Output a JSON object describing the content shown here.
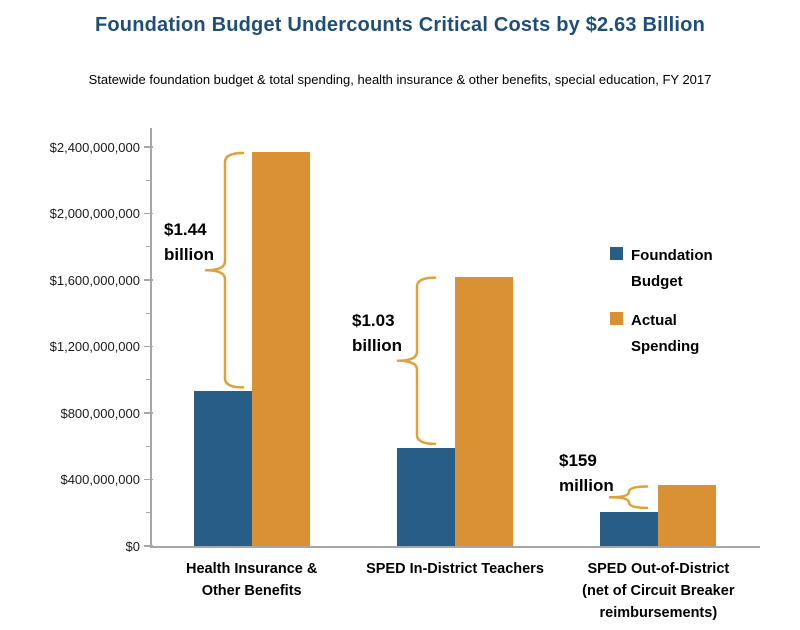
{
  "chart_data": {
    "type": "bar",
    "title": "Foundation Budget Undercounts Critical Costs by $2.63 Billion",
    "subtitle": "Statewide foundation budget & total spending, health insurance & other benefits, special education, FY 2017",
    "categories": [
      "Health Insurance &\nOther Benefits",
      "SPED In-District Teachers",
      "SPED Out-of-District\n(net of Circuit Breaker\nreimbursements)"
    ],
    "series": [
      {
        "name": "Foundation Budget",
        "color": "#275d87",
        "values": [
          930000000,
          590000000,
          205000000
        ]
      },
      {
        "name": "Actual Spending",
        "color": "#d99134",
        "values": [
          2370000000,
          1620000000,
          364000000
        ]
      }
    ],
    "annotations": [
      {
        "label": "$1.44\nbillion",
        "value": 1440000000
      },
      {
        "label": "$1.03\nbillion",
        "value": 1030000000
      },
      {
        "label": "$159\nmillion",
        "value": 159000000
      }
    ],
    "ylim": [
      0,
      2400000000
    ],
    "ytick_step": 400000000,
    "ytick_labels": [
      "$0",
      "$400,000,000",
      "$800,000,000",
      "$1,200,000,000",
      "$1,600,000,000",
      "$2,000,000,000",
      "$2,400,000,000"
    ],
    "grid": false,
    "legend_position": "right-middle",
    "colors": {
      "title": "#1f4e79",
      "axis": "#a6a6a6",
      "brace": "#dfa13c",
      "text": "#000000"
    }
  }
}
